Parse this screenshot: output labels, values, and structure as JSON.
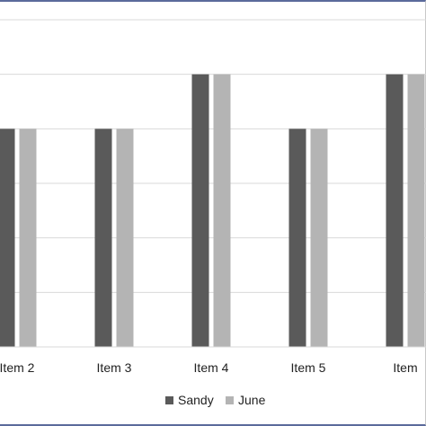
{
  "chart_data": {
    "type": "bar",
    "categories": [
      "Item 2",
      "Item 3",
      "Item 4",
      "Item 5",
      "Item"
    ],
    "series": [
      {
        "name": "Sandy",
        "values": [
          4,
          4,
          5,
          4,
          5
        ],
        "color": "#5a5a5a"
      },
      {
        "name": "June",
        "values": [
          4,
          4,
          5,
          4,
          5
        ],
        "color": "#b4b4b4"
      }
    ],
    "ylim": [
      0,
      6
    ],
    "grid": true,
    "legend_position": "bottom"
  },
  "legend": {
    "sandy_label": "Sandy",
    "june_label": "June"
  }
}
